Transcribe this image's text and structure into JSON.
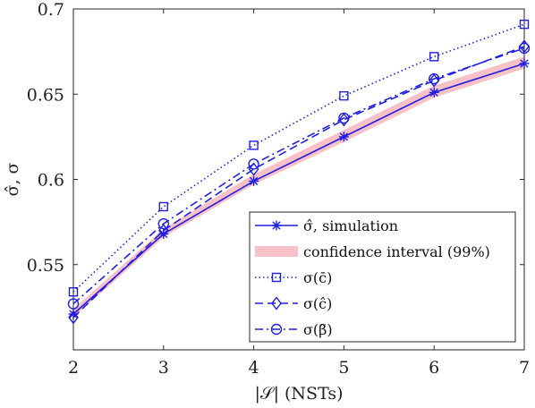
{
  "chart_data": {
    "type": "line",
    "x": [
      2,
      3,
      4,
      5,
      6,
      7
    ],
    "xlim": [
      2,
      7
    ],
    "ylim": [
      0.5,
      0.7
    ],
    "xticks": [
      "2",
      "3",
      "4",
      "5",
      "6",
      "7"
    ],
    "yticks": [
      "0.55",
      "0.6",
      "0.65",
      "0.7"
    ],
    "xlabel": "|𝒮| (NSTs)",
    "ylabel": "σ̂, σ",
    "grid": false,
    "legend_position": "lower-right",
    "series": [
      {
        "name": "σ̂, simulation",
        "values": [
          0.521,
          0.568,
          0.599,
          0.625,
          0.651,
          0.668
        ],
        "color": "#1f1fdf",
        "line_style": "solid",
        "marker": "asterisk"
      },
      {
        "name": "confidence interval (99%)",
        "lower": [
          0.519,
          0.566,
          0.597,
          0.622,
          0.648,
          0.665
        ],
        "upper": [
          0.524,
          0.571,
          0.603,
          0.629,
          0.655,
          0.672
        ],
        "color": "#f7b5bd",
        "type": "band"
      },
      {
        "name": "σ(c̄)",
        "values": [
          0.534,
          0.584,
          0.62,
          0.649,
          0.672,
          0.691
        ],
        "color": "#1f1fdf",
        "line_style": "dotted",
        "marker": "square"
      },
      {
        "name": "σ(ĉ)",
        "values": [
          0.519,
          0.57,
          0.606,
          0.635,
          0.658,
          0.678
        ],
        "color": "#1f1fdf",
        "line_style": "dashed",
        "marker": "diamond"
      },
      {
        "name": "σ(β̃)",
        "values": [
          0.527,
          0.574,
          0.609,
          0.636,
          0.659,
          0.677
        ],
        "color": "#1f1fdf",
        "line_style": "dashdot",
        "marker": "circle"
      }
    ]
  }
}
